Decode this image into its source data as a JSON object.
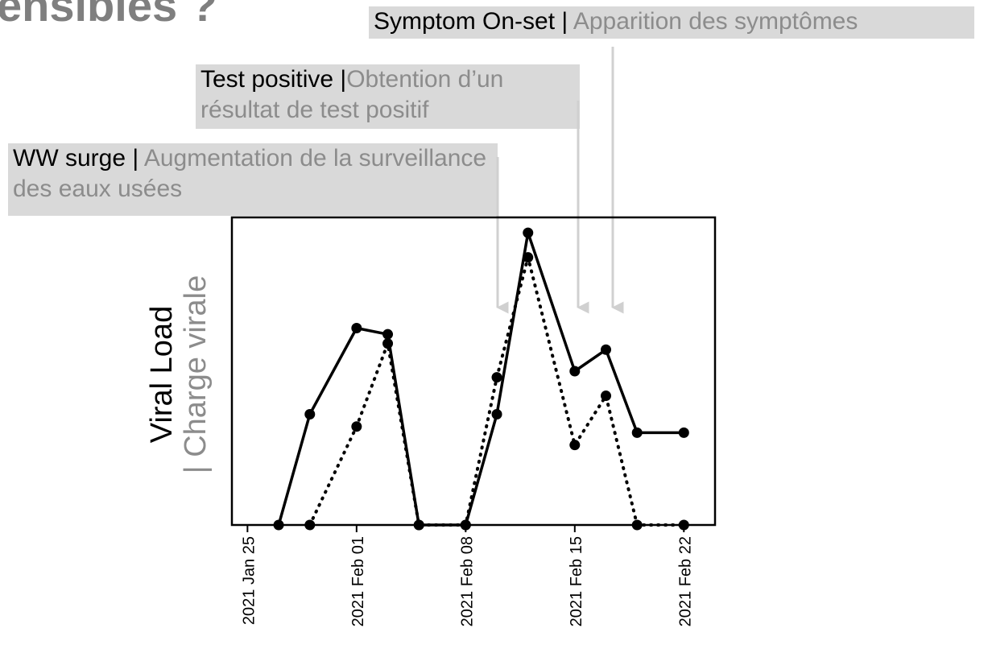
{
  "title": "ensibles ?",
  "annotations": [
    {
      "label": "Symptom On-set |",
      "detail": " Apparition des symptômes"
    },
    {
      "label": "Test positive |",
      "detail": "Obtention d’un résultat de test positif"
    },
    {
      "label": "WW surge |",
      "detail": " Augmentation de la surveillance des eaux usées"
    }
  ],
  "chart_data": {
    "type": "line",
    "ylabel": "Viral Load",
    "ylabel_secondary": "| Charge virale",
    "x": [
      "2021-01-27",
      "2021-01-29",
      "2021-02-01",
      "2021-02-03",
      "2021-02-05",
      "2021-02-08",
      "2021-02-10",
      "2021-02-12",
      "2021-02-15",
      "2021-02-17",
      "2021-02-19",
      "2021-02-22"
    ],
    "series": [
      {
        "color": "#000000",
        "dash": "solid",
        "values": [
          0,
          36,
          64,
          62,
          0,
          0,
          36,
          95,
          50,
          57,
          30,
          30
        ]
      },
      {
        "color": "#000000",
        "dash": "dotted",
        "values": [
          null,
          0,
          32,
          59,
          0,
          0,
          48,
          87,
          26,
          42,
          0,
          0
        ]
      }
    ],
    "xlim": [
      "2021-01-24",
      "2021-02-24"
    ],
    "xticks": [
      {
        "value": "2021-01-25",
        "label": "2021 Jan 25"
      },
      {
        "value": "2021-02-01",
        "label": "2021 Feb 01"
      },
      {
        "value": "2021-02-08",
        "label": "2021 Feb 08"
      },
      {
        "value": "2021-02-15",
        "label": "2021 Feb 15"
      },
      {
        "value": "2021-02-22",
        "label": "2021 Feb 22"
      }
    ],
    "ylim": [
      0,
      100
    ]
  }
}
